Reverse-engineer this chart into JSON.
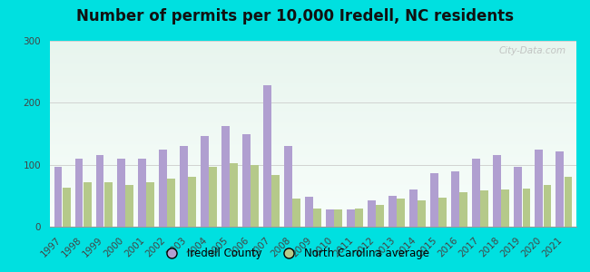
{
  "title": "Number of permits per 10,000 Iredell, NC residents",
  "years": [
    1997,
    1998,
    1999,
    2000,
    2001,
    2002,
    2003,
    2004,
    2005,
    2006,
    2007,
    2008,
    2009,
    2010,
    2011,
    2012,
    2013,
    2014,
    2015,
    2016,
    2017,
    2018,
    2019,
    2020,
    2021
  ],
  "iredell": [
    97,
    110,
    115,
    110,
    110,
    125,
    130,
    147,
    162,
    150,
    228,
    130,
    48,
    28,
    28,
    42,
    50,
    60,
    87,
    90,
    110,
    115,
    97,
    125,
    122
  ],
  "nc_avg": [
    63,
    72,
    72,
    68,
    72,
    78,
    80,
    97,
    103,
    100,
    83,
    45,
    30,
    28,
    30,
    35,
    45,
    42,
    47,
    55,
    58,
    60,
    62,
    68,
    80
  ],
  "iredell_color": "#b09fd0",
  "nc_avg_color": "#b5c98a",
  "bg_top": "#f0faf5",
  "bg_bottom": "#d8f0e0",
  "outer_background": "#00e0e0",
  "ylim": [
    0,
    300
  ],
  "yticks": [
    0,
    100,
    200,
    300
  ],
  "legend_iredell": "Iredell County",
  "legend_nc": "North Carolina average",
  "watermark": "City-Data.com",
  "title_fontsize": 12,
  "tick_fontsize": 7.5,
  "legend_fontsize": 8.5
}
